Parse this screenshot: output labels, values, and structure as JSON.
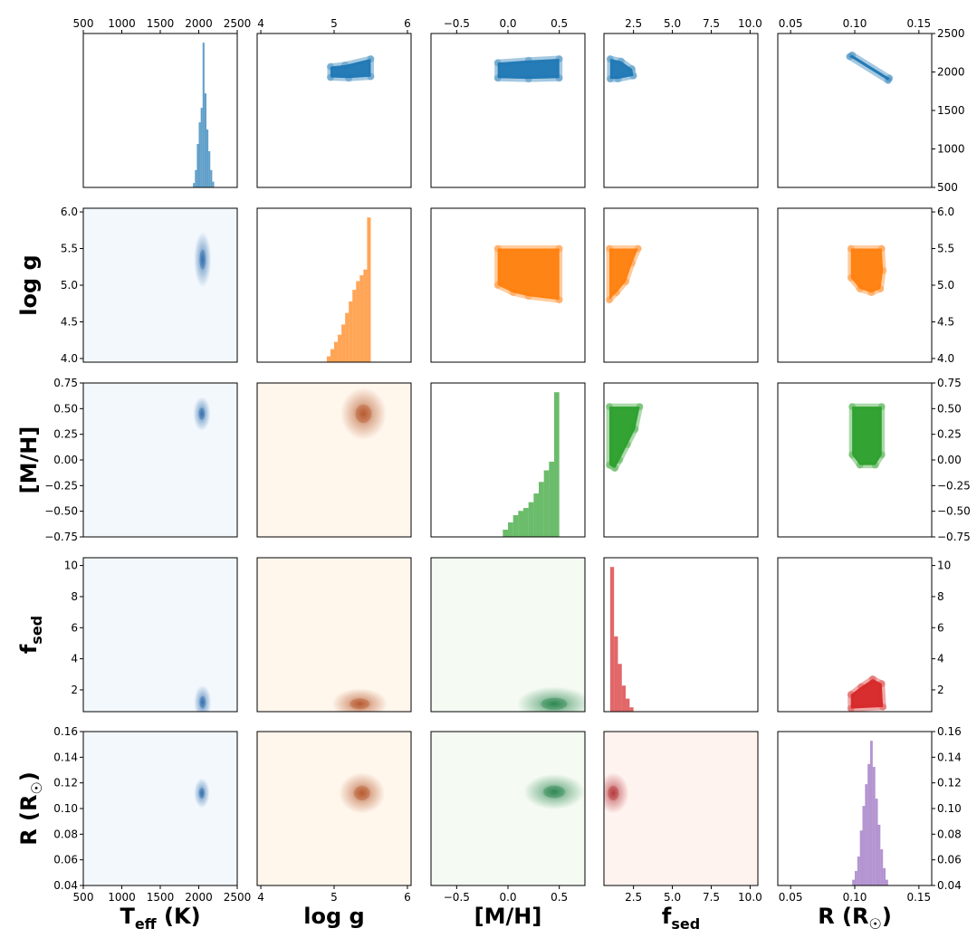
{
  "chart_data": {
    "type": "corner-plot",
    "parameters": [
      {
        "key": "teff",
        "label": "Teff (K)",
        "label_main": "T",
        "label_sub": "eff",
        "label_tail": " (K)",
        "range": [
          500,
          2500
        ],
        "ticks": [
          500,
          1000,
          1500,
          2000,
          2500
        ],
        "tick_labels": [
          "500",
          "1000",
          "1500",
          "2000",
          "2500"
        ],
        "color": "#1f77b4"
      },
      {
        "key": "logg",
        "label": "log g",
        "label_main": "log g",
        "label_sub": "",
        "label_tail": "",
        "range": [
          3.95,
          6.05
        ],
        "ticks": [
          4,
          5,
          6
        ],
        "tick_labels": [
          "4",
          "5",
          "6"
        ],
        "y_ticks": [
          4.0,
          4.5,
          5.0,
          5.5,
          6.0
        ],
        "y_tick_labels": [
          "4.0",
          "4.5",
          "5.0",
          "5.5",
          "6.0"
        ],
        "color": "#ff7f0e"
      },
      {
        "key": "mh",
        "label": "[M/H]",
        "label_main": "[M/H]",
        "label_sub": "",
        "label_tail": "",
        "range": [
          -0.75,
          0.75
        ],
        "ticks": [
          -0.5,
          0.0,
          0.5
        ],
        "tick_labels": [
          "−0.5",
          "0.0",
          "0.5"
        ],
        "y_ticks": [
          -0.75,
          -0.5,
          -0.25,
          0.0,
          0.25,
          0.5,
          0.75
        ],
        "y_tick_labels": [
          "−0.75",
          "−0.50",
          "−0.25",
          "0.00",
          "0.25",
          "0.50",
          "0.75"
        ],
        "color": "#2ca02c"
      },
      {
        "key": "fsed",
        "label": "fsed",
        "label_main": "f",
        "label_sub": "sed",
        "label_tail": "",
        "range": [
          0.6,
          10.5
        ],
        "ticks": [
          2.5,
          5.0,
          7.5,
          10.0
        ],
        "tick_labels": [
          "2.5",
          "5.0",
          "7.5",
          "10.0"
        ],
        "y_ticks": [
          2,
          4,
          6,
          8,
          10
        ],
        "y_tick_labels": [
          "2",
          "4",
          "6",
          "8",
          "10"
        ],
        "color": "#d62728"
      },
      {
        "key": "r",
        "label": "R (R☉)",
        "label_main": "R (R",
        "label_sub": "☉",
        "label_tail": ")",
        "range": [
          0.04,
          0.16
        ],
        "ticks": [
          0.05,
          0.1,
          0.15
        ],
        "tick_labels": [
          "0.05",
          "0.10",
          "0.15"
        ],
        "y_ticks": [
          0.04,
          0.06,
          0.08,
          0.1,
          0.12,
          0.14,
          0.16
        ],
        "y_tick_labels": [
          "0.04",
          "0.06",
          "0.08",
          "0.10",
          "0.12",
          "0.14",
          "0.16"
        ],
        "color": "#9467bd"
      }
    ],
    "teff_right_axis": {
      "range": [
        500,
        2500
      ],
      "ticks": [
        500,
        1000,
        1500,
        2000,
        2500
      ],
      "tick_labels": [
        "500",
        "1000",
        "1500",
        "2000",
        "2500"
      ]
    },
    "histograms": {
      "teff": {
        "edges": [
          1925,
          1950,
          1975,
          2000,
          2025,
          2050,
          2075,
          2100,
          2125,
          2150,
          2175,
          2200
        ],
        "counts": [
          3,
          12,
          30,
          45,
          55,
          100,
          65,
          40,
          25,
          12,
          4
        ]
      },
      "logg": {
        "edges": [
          4.9,
          4.95,
          5.0,
          5.05,
          5.1,
          5.15,
          5.2,
          5.25,
          5.3,
          5.35,
          5.4,
          5.45,
          5.5
        ],
        "counts": [
          4,
          9,
          14,
          19,
          26,
          34,
          42,
          50,
          56,
          60,
          64,
          100
        ]
      },
      "mh": {
        "edges": [
          -0.05,
          0.0,
          0.05,
          0.1,
          0.15,
          0.2,
          0.25,
          0.3,
          0.35,
          0.4,
          0.45,
          0.5
        ],
        "counts": [
          5,
          10,
          15,
          18,
          20,
          24,
          30,
          38,
          46,
          52,
          100
        ]
      },
      "fsed": {
        "edges": [
          1.0,
          1.25,
          1.5,
          1.75,
          2.0,
          2.25,
          2.5
        ],
        "counts": [
          100,
          52,
          33,
          18,
          9,
          3
        ]
      },
      "r": {
        "edges": [
          0.098,
          0.1,
          0.102,
          0.104,
          0.106,
          0.108,
          0.11,
          0.112,
          0.114,
          0.116,
          0.118,
          0.12,
          0.122,
          0.124,
          0.126
        ],
        "counts": [
          4,
          10,
          20,
          38,
          55,
          70,
          84,
          100,
          82,
          60,
          42,
          25,
          12,
          4
        ]
      }
    },
    "scatter_clouds": [
      {
        "row": "teff",
        "col": "logg",
        "color": "#1f77b4",
        "polygon": [
          [
            4.95,
            1930
          ],
          [
            4.95,
            2070
          ],
          [
            5.15,
            2090
          ],
          [
            5.5,
            2170
          ],
          [
            5.5,
            1940
          ],
          [
            5.2,
            1920
          ]
        ]
      },
      {
        "row": "teff",
        "col": "mh",
        "color": "#1f77b4",
        "polygon": [
          [
            -0.1,
            1920
          ],
          [
            -0.1,
            2120
          ],
          [
            0.2,
            2150
          ],
          [
            0.5,
            2170
          ],
          [
            0.5,
            1920
          ],
          [
            0.2,
            1910
          ]
        ]
      },
      {
        "row": "teff",
        "col": "fsed",
        "color": "#1f77b4",
        "polygon": [
          [
            1.0,
            1910
          ],
          [
            1.0,
            2170
          ],
          [
            1.7,
            2140
          ],
          [
            2.4,
            2040
          ],
          [
            2.5,
            1950
          ],
          [
            1.5,
            1910
          ]
        ]
      },
      {
        "row": "teff",
        "col": "r",
        "color": "#1f77b4",
        "polygon": [
          [
            0.096,
            2200
          ],
          [
            0.098,
            2220
          ],
          [
            0.127,
            1920
          ],
          [
            0.126,
            1890
          ]
        ]
      },
      {
        "row": "logg",
        "col": "mh",
        "color": "#ff7f0e",
        "polygon": [
          [
            -0.1,
            5.0
          ],
          [
            -0.1,
            5.5
          ],
          [
            0.5,
            5.5
          ],
          [
            0.5,
            4.8
          ],
          [
            0.2,
            4.85
          ],
          [
            0.05,
            4.9
          ]
        ]
      },
      {
        "row": "logg",
        "col": "fsed",
        "color": "#ff7f0e",
        "polygon": [
          [
            0.95,
            4.8
          ],
          [
            0.95,
            5.5
          ],
          [
            2.8,
            5.5
          ],
          [
            2.4,
            5.3
          ],
          [
            2.0,
            5.05
          ],
          [
            1.4,
            4.9
          ]
        ]
      },
      {
        "row": "logg",
        "col": "r",
        "color": "#ff7f0e",
        "polygon": [
          [
            0.097,
            5.1
          ],
          [
            0.097,
            5.5
          ],
          [
            0.121,
            5.5
          ],
          [
            0.122,
            5.2
          ],
          [
            0.12,
            4.95
          ],
          [
            0.113,
            4.9
          ],
          [
            0.104,
            4.95
          ]
        ]
      },
      {
        "row": "mh",
        "col": "fsed",
        "color": "#2ca02c",
        "polygon": [
          [
            0.95,
            -0.05
          ],
          [
            0.95,
            0.52
          ],
          [
            2.9,
            0.52
          ],
          [
            2.6,
            0.3
          ],
          [
            2.1,
            0.15
          ],
          [
            1.6,
            0.0
          ],
          [
            1.3,
            -0.08
          ]
        ]
      },
      {
        "row": "mh",
        "col": "r",
        "color": "#2ca02c",
        "polygon": [
          [
            0.098,
            0.05
          ],
          [
            0.098,
            0.52
          ],
          [
            0.121,
            0.52
          ],
          [
            0.121,
            0.05
          ],
          [
            0.116,
            -0.05
          ],
          [
            0.104,
            -0.05
          ]
        ]
      },
      {
        "row": "fsed",
        "col": "r",
        "color": "#d62728",
        "polygon": [
          [
            0.097,
            0.8
          ],
          [
            0.097,
            1.7
          ],
          [
            0.105,
            2.2
          ],
          [
            0.114,
            2.7
          ],
          [
            0.121,
            2.4
          ],
          [
            0.122,
            0.9
          ]
        ]
      }
    ],
    "density_cores": [
      {
        "row": "logg",
        "col": "teff",
        "cmap": "Blues",
        "center": [
          2050,
          5.35
        ],
        "spread": [
          30,
          0.15
        ]
      },
      {
        "row": "mh",
        "col": "teff",
        "cmap": "Blues",
        "center": [
          2040,
          0.45
        ],
        "spread": [
          30,
          0.06
        ]
      },
      {
        "row": "mh",
        "col": "logg",
        "cmap": "Oranges",
        "center": [
          5.4,
          0.45
        ],
        "spread": [
          0.12,
          0.1
        ]
      },
      {
        "row": "fsed",
        "col": "teff",
        "cmap": "Blues",
        "center": [
          2050,
          1.2
        ],
        "spread": [
          30,
          0.4
        ]
      },
      {
        "row": "fsed",
        "col": "logg",
        "cmap": "Oranges",
        "center": [
          5.35,
          1.1
        ],
        "spread": [
          0.15,
          0.35
        ]
      },
      {
        "row": "fsed",
        "col": "mh",
        "cmap": "Greens",
        "center": [
          0.45,
          1.1
        ],
        "spread": [
          0.15,
          0.4
        ]
      },
      {
        "row": "r",
        "col": "teff",
        "cmap": "Blues",
        "center": [
          2040,
          0.112
        ],
        "spread": [
          25,
          0.004
        ]
      },
      {
        "row": "r",
        "col": "logg",
        "cmap": "Oranges",
        "center": [
          5.38,
          0.112
        ],
        "spread": [
          0.12,
          0.006
        ]
      },
      {
        "row": "r",
        "col": "mh",
        "cmap": "Greens",
        "center": [
          0.45,
          0.113
        ],
        "spread": [
          0.12,
          0.005
        ]
      },
      {
        "row": "r",
        "col": "fsed",
        "cmap": "Reds",
        "center": [
          1.2,
          0.112
        ],
        "spread": [
          0.35,
          0.006
        ]
      }
    ],
    "density_backgrounds": {
      "Blues": "#f3f8fd",
      "Oranges": "#fff6ec",
      "Greens": "#f5fbf3",
      "Reds": "#fff3f0"
    },
    "grid": false
  }
}
